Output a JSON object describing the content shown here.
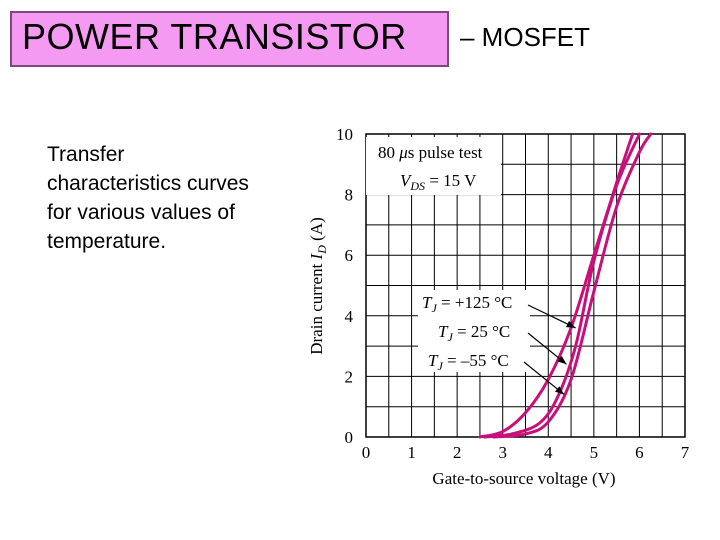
{
  "title": {
    "main": "POWER TRANSISTOR",
    "suffix": "– MOSFET"
  },
  "description": [
    "Transfer",
    "characteristics curves",
    "for various values of",
    "temperature."
  ],
  "chart_data": {
    "type": "line",
    "xlabel": "Gate-to-source voltage (V)",
    "ylabel": "Drain current I_D (A)",
    "xlim": [
      0,
      7
    ],
    "ylim": [
      0,
      10
    ],
    "xticks": [
      "0",
      "1",
      "2",
      "3",
      "4",
      "5",
      "6",
      "7"
    ],
    "yticks": [
      "0",
      "2",
      "4",
      "6",
      "8",
      "10"
    ],
    "grid": true,
    "color": "#c8107a",
    "legend": [
      "80 μs pulse test",
      "V_DS = 15 V"
    ],
    "series": [
      {
        "name": "T_J = +125 °C",
        "x": [
          2.5,
          3.0,
          3.5,
          4.0,
          4.5,
          5.0,
          5.5,
          5.85
        ],
        "y": [
          0.0,
          0.18,
          0.8,
          1.9,
          3.6,
          6.0,
          8.4,
          10.0
        ]
      },
      {
        "name": "T_J = 25 °C",
        "x": [
          2.6,
          3.2,
          3.8,
          4.2,
          4.6,
          5.0,
          5.5,
          6.0
        ],
        "y": [
          0.0,
          0.1,
          0.45,
          1.3,
          3.0,
          5.8,
          8.3,
          10.0
        ]
      },
      {
        "name": "T_J = –55 °C",
        "x": [
          2.8,
          3.5,
          4.0,
          4.5,
          5.0,
          5.5,
          6.0,
          6.25
        ],
        "y": [
          0.0,
          0.1,
          0.5,
          1.9,
          4.8,
          7.6,
          9.4,
          10.0
        ]
      }
    ],
    "annotations": [
      {
        "text": "T_J = +125 °C",
        "arrow_to": [
          4.6,
          3.6
        ]
      },
      {
        "text": "T_J = 25 °C",
        "arrow_to": [
          4.4,
          2.4
        ]
      },
      {
        "text": "T_J = –55 °C",
        "arrow_to": [
          4.35,
          1.4
        ]
      }
    ]
  }
}
